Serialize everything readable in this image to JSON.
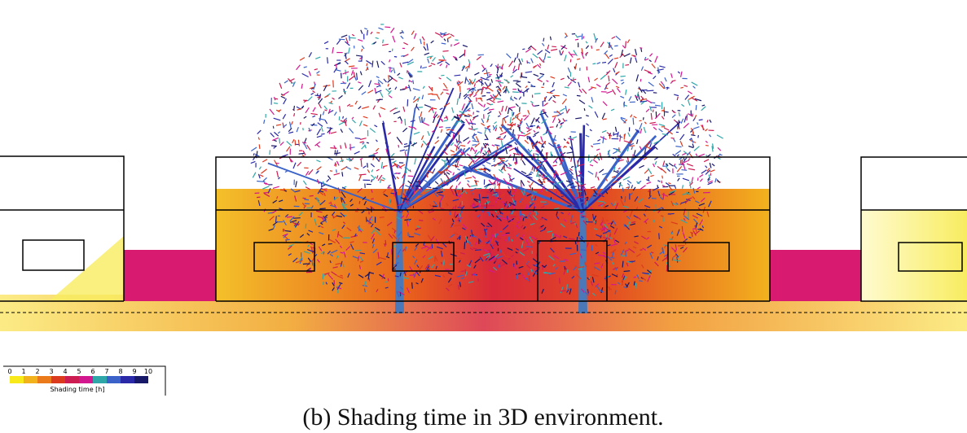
{
  "legend": {
    "ticks": [
      0,
      1,
      2,
      3,
      4,
      5,
      6,
      7,
      8,
      9,
      10
    ],
    "colors": [
      "#f7e91a",
      "#f2b21c",
      "#ea7a1a",
      "#dc3a1e",
      "#cc1c52",
      "#d3178f",
      "#2fa7a8",
      "#3a62c8",
      "#2a2aa8",
      "#181868"
    ],
    "title": "Shading time [h]"
  },
  "caption": "(b) Shading time in 3D environment."
}
